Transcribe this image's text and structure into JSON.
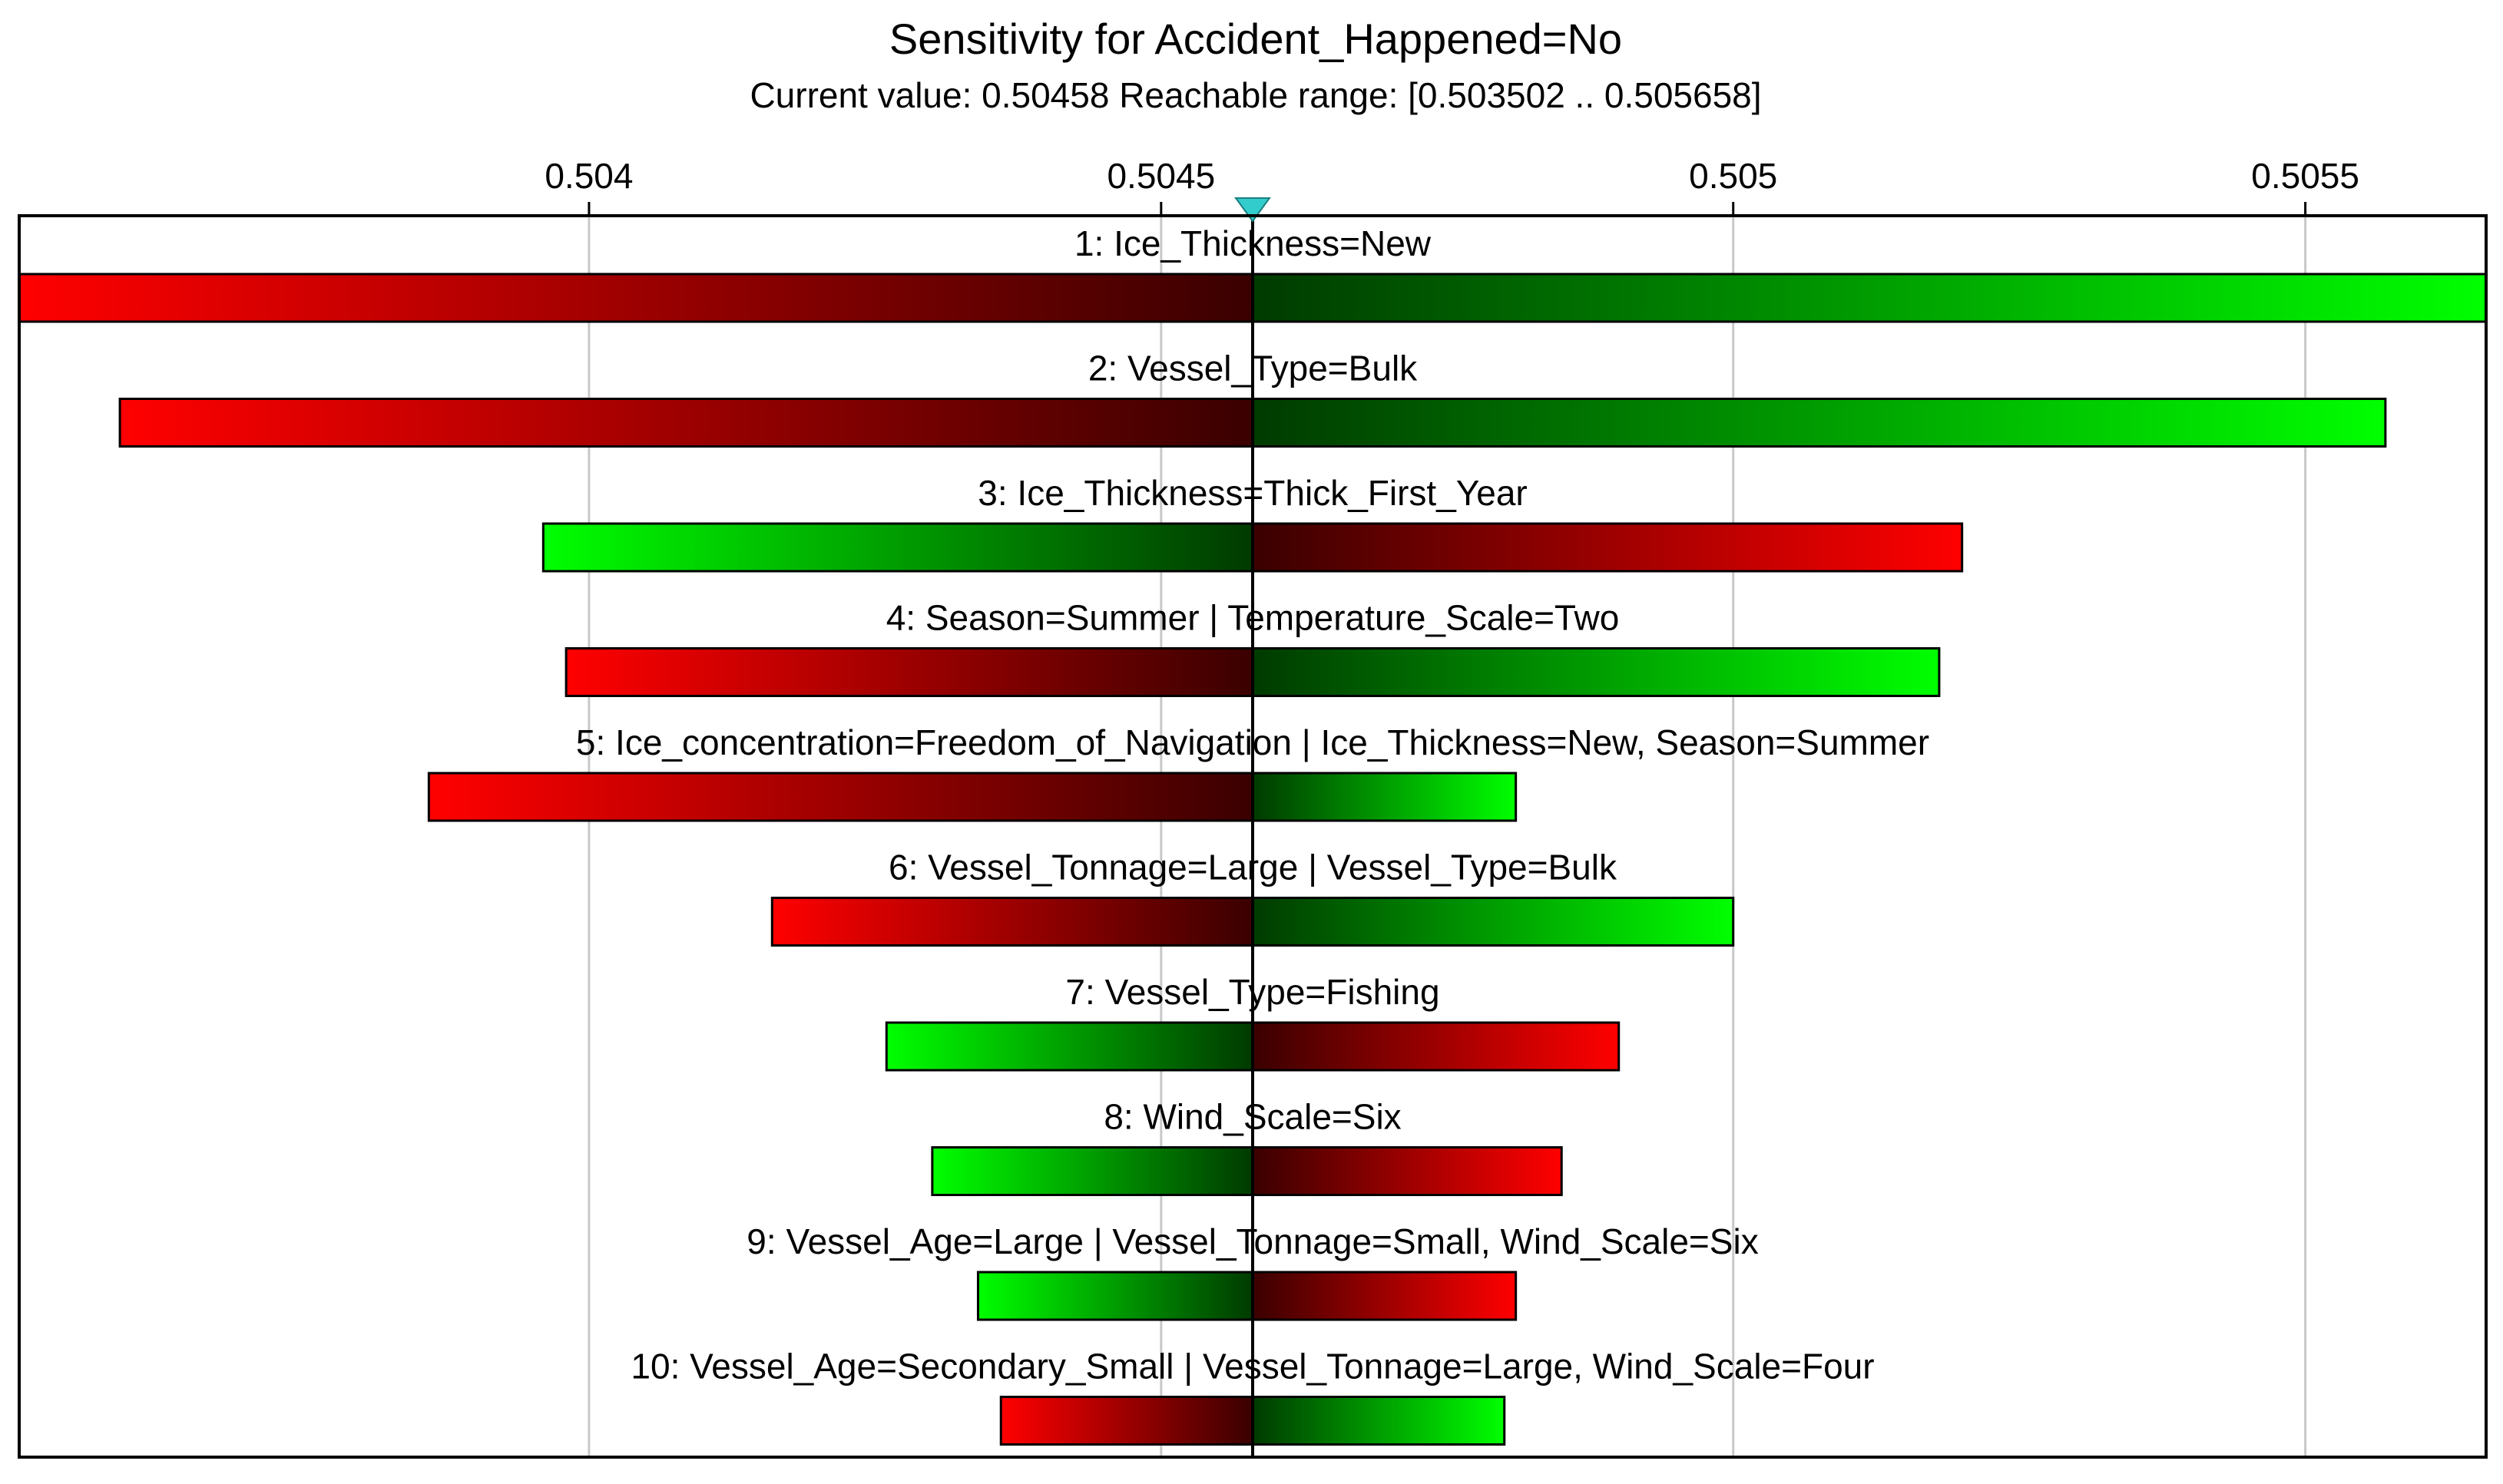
{
  "chart_data": {
    "type": "tornado",
    "title": "Sensitivity for Accident_Happened=No",
    "subtitle": "Current value: 0.50458  Reachable range: [0.503502 .. 0.505658]",
    "current_value": 0.50458,
    "xlim": [
      0.503502,
      0.505658
    ],
    "x_ticks": [
      {
        "value": 0.504,
        "label": "0.504"
      },
      {
        "value": 0.5045,
        "label": "0.5045"
      },
      {
        "value": 0.505,
        "label": "0.505"
      },
      {
        "value": 0.5055,
        "label": "0.5055"
      }
    ],
    "grid": true,
    "colors": {
      "red": "#ff0000",
      "green": "#00ff00",
      "dark_red": "#3a0000",
      "dark_green": "#003a00",
      "marker": "#33cccc",
      "grid": "#c8c8c8"
    },
    "bars": [
      {
        "label": "1: Ice_Thickness=New",
        "low": 0.503502,
        "high": 0.505658,
        "low_color": "red",
        "high_color": "green"
      },
      {
        "label": "2: Vessel_Type=Bulk",
        "low": 0.50359,
        "high": 0.50557,
        "low_color": "red",
        "high_color": "green"
      },
      {
        "label": "3: Ice_Thickness=Thick_First_Year",
        "low": 0.50396,
        "high": 0.5052,
        "low_color": "green",
        "high_color": "red"
      },
      {
        "label": "4: Season=Summer | Temperature_Scale=Two",
        "low": 0.50398,
        "high": 0.50518,
        "low_color": "red",
        "high_color": "green"
      },
      {
        "label": "5: Ice_concentration=Freedom_of_Navigation | Ice_Thickness=New, Season=Summer",
        "low": 0.50386,
        "high": 0.50481,
        "low_color": "red",
        "high_color": "green"
      },
      {
        "label": "6: Vessel_Tonnage=Large | Vessel_Type=Bulk",
        "low": 0.50416,
        "high": 0.505,
        "low_color": "red",
        "high_color": "green"
      },
      {
        "label": "7: Vessel_Type=Fishing",
        "low": 0.50426,
        "high": 0.5049,
        "low_color": "green",
        "high_color": "red"
      },
      {
        "label": "8: Wind_Scale=Six",
        "low": 0.5043,
        "high": 0.50485,
        "low_color": "green",
        "high_color": "red"
      },
      {
        "label": "9: Vessel_Age=Large | Vessel_Tonnage=Small, Wind_Scale=Six",
        "low": 0.50434,
        "high": 0.50481,
        "low_color": "green",
        "high_color": "red"
      },
      {
        "label": "10: Vessel_Age=Secondary_Small | Vessel_Tonnage=Large, Wind_Scale=Four",
        "low": 0.50436,
        "high": 0.5048,
        "low_color": "red",
        "high_color": "green"
      }
    ]
  }
}
